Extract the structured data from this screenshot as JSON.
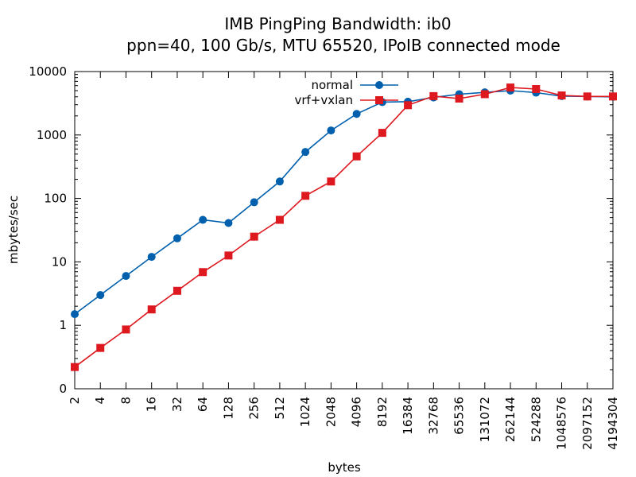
{
  "chart_data": {
    "type": "line",
    "title": "IMB PingPing Bandwidth: ib0",
    "subtitle": "ppn=40, 100 Gb/s, MTU 65520, IPoIB connected mode",
    "xlabel": "bytes",
    "ylabel": "mbytes/sec",
    "x_scale": "log2",
    "y_scale": "log10",
    "ylim": [
      0.1,
      10000
    ],
    "x_ticks": [
      2,
      4,
      8,
      16,
      32,
      64,
      128,
      256,
      512,
      1024,
      2048,
      4096,
      8192,
      16384,
      32768,
      65536,
      131072,
      262144,
      524288,
      1048576,
      2097152,
      4194304
    ],
    "y_ticks": [
      0.1,
      1,
      10,
      100,
      1000,
      10000
    ],
    "y_tick_labels": [
      "0",
      "1",
      "10",
      "100",
      "1000",
      "10000"
    ],
    "legend_position": "top-center",
    "grid": false,
    "x": [
      2,
      4,
      8,
      16,
      32,
      64,
      128,
      256,
      512,
      1024,
      2048,
      4096,
      8192,
      16384,
      32768,
      65536,
      131072,
      262144,
      524288,
      1048576,
      2097152,
      4194304
    ],
    "series": [
      {
        "name": "normal",
        "color": "#0060ad",
        "marker": "circle",
        "values": [
          1.5,
          3.0,
          6.0,
          12.0,
          23.5,
          46.0,
          41.0,
          87.0,
          185.0,
          540.0,
          1180.0,
          2150.0,
          3300.0,
          3350.0,
          3900.0,
          4400.0,
          4700.0,
          5000.0,
          4650.0,
          4100.0,
          4050.0,
          4000.0
        ]
      },
      {
        "name": "vrf+vxlan",
        "color": "#dd181f",
        "marker": "square",
        "values": [
          0.22,
          0.44,
          0.86,
          1.78,
          3.5,
          6.9,
          12.6,
          25.0,
          46.0,
          110.0,
          185.0,
          460.0,
          1080.0,
          2950.0,
          4100.0,
          3750.0,
          4400.0,
          5600.0,
          5300.0,
          4200.0,
          4050.0,
          4050.0
        ]
      }
    ]
  }
}
